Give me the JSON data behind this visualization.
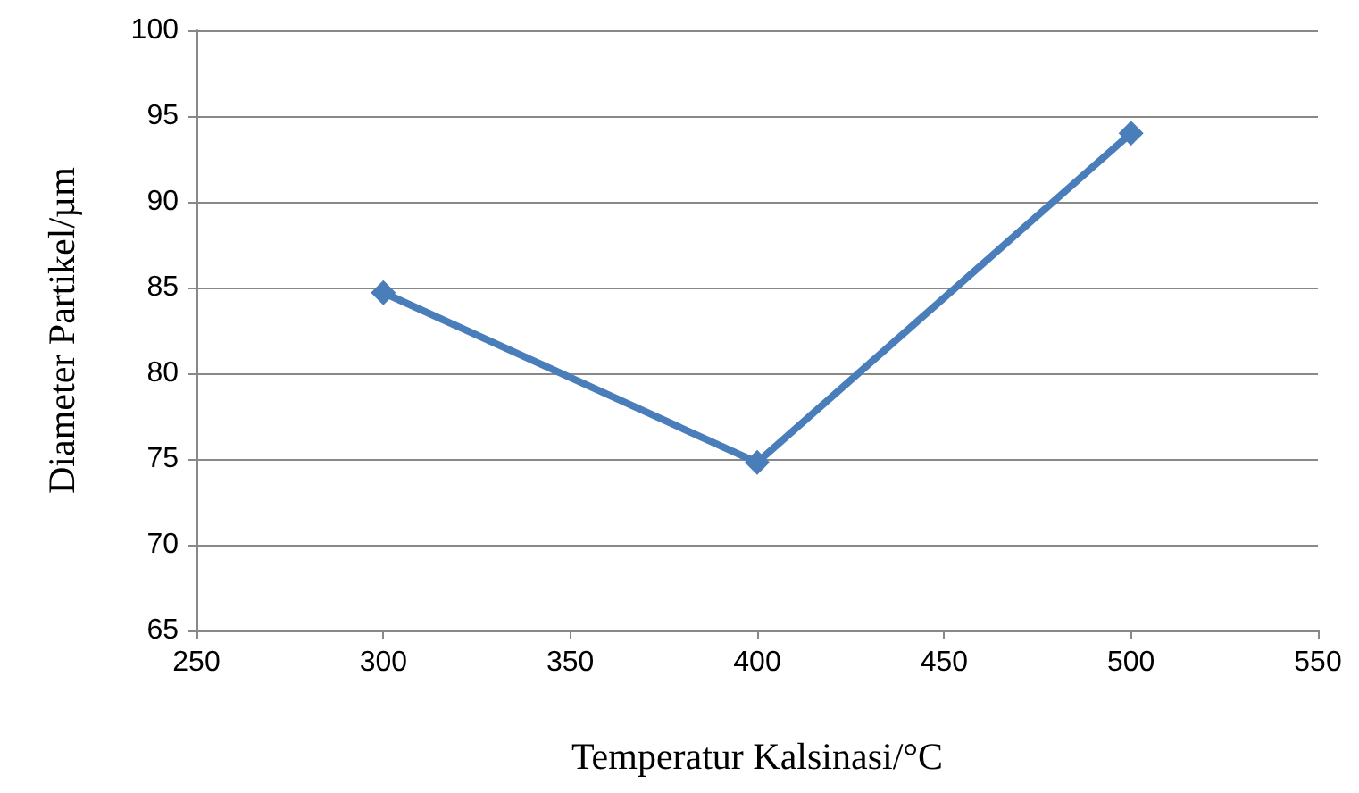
{
  "chart_data": {
    "type": "line",
    "xlabel": "Temperatur Kalsinasi/°C",
    "ylabel": "Diameter Partikel/µm",
    "x": [
      300,
      400,
      500
    ],
    "series": [
      {
        "color": "#4a7ebb",
        "values": [
          84.7,
          74.8,
          94
        ]
      }
    ],
    "xlim": [
      250,
      550
    ],
    "xticks": [
      250,
      300,
      350,
      400,
      450,
      500,
      550
    ],
    "ylim": [
      65,
      100
    ],
    "yticks": [
      65,
      70,
      75,
      80,
      85,
      90,
      95,
      100
    ],
    "grid": "y",
    "marker": "diamond",
    "line_style": "solid"
  }
}
